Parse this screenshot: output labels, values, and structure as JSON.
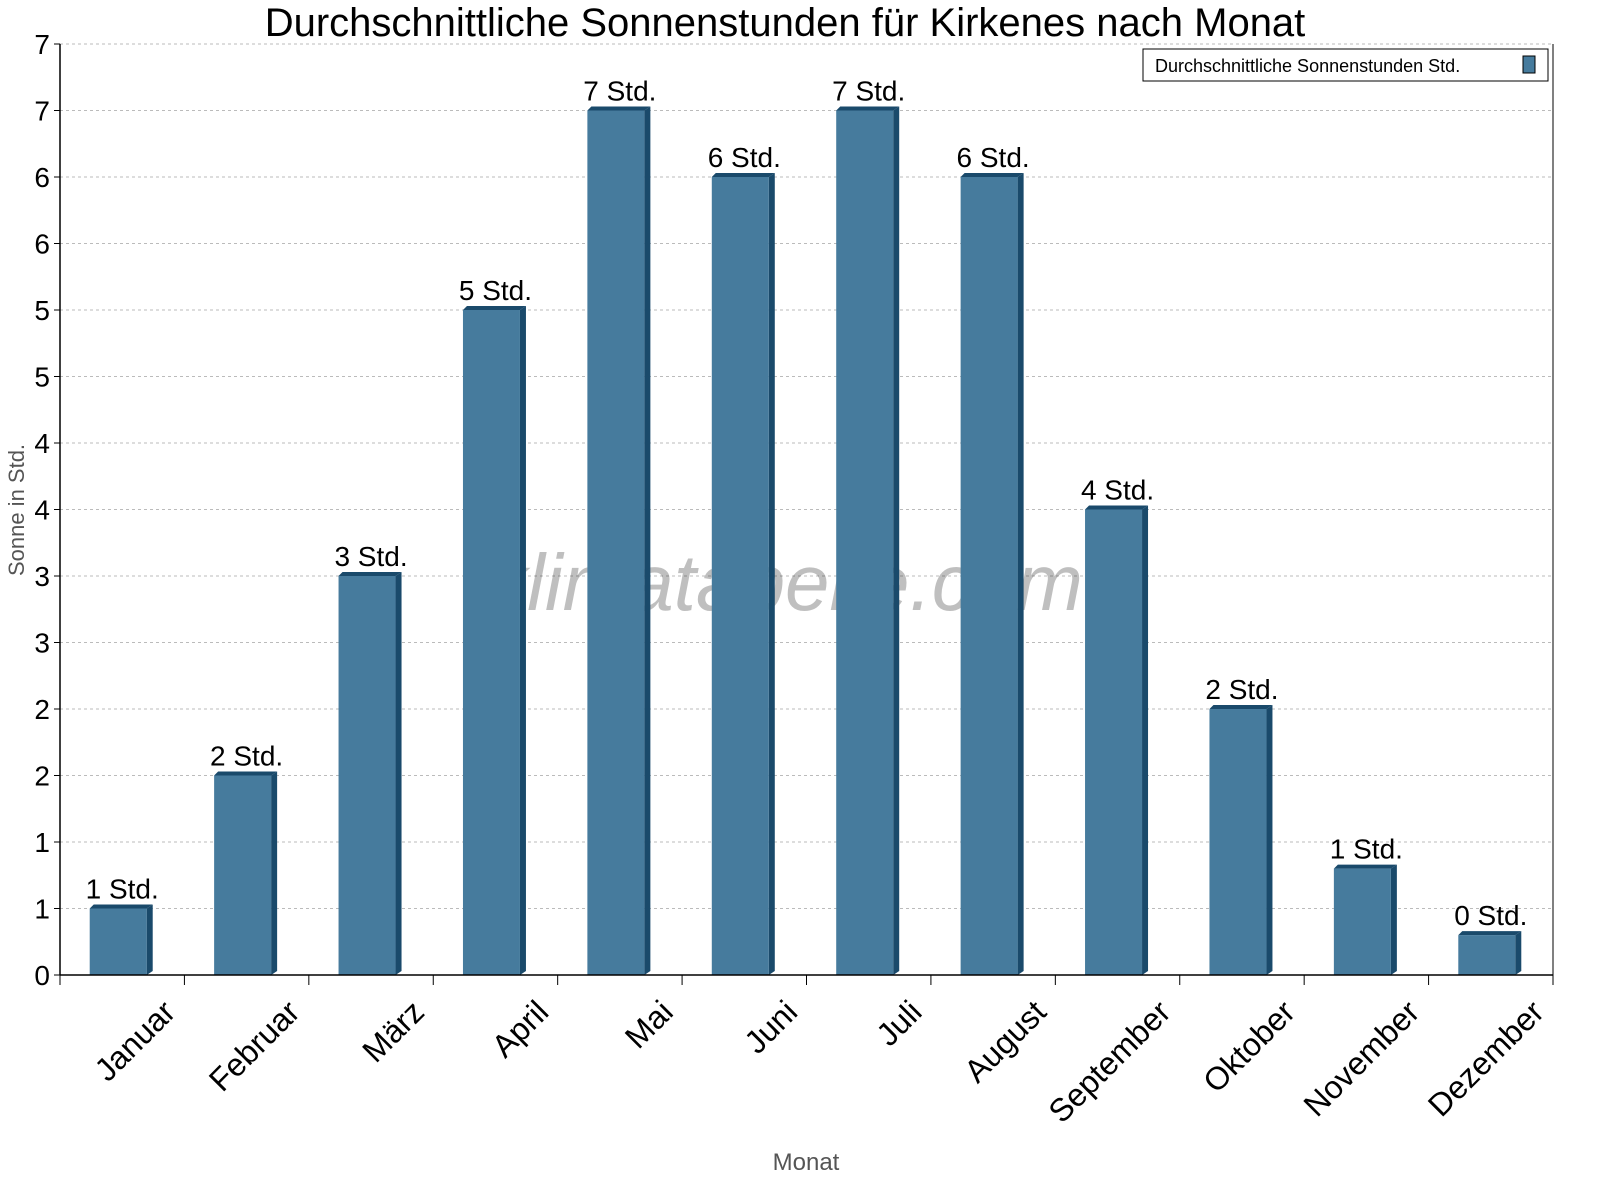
{
  "chart_data": {
    "type": "bar",
    "title": "Durchschnittliche Sonnenstunden für Kirkenes nach Monat",
    "xlabel": "Monat",
    "ylabel": "Sonne in Std.",
    "categories": [
      "Januar",
      "Februar",
      "März",
      "April",
      "Mai",
      "Juni",
      "Juli",
      "August",
      "September",
      "Oktober",
      "November",
      "Dezember"
    ],
    "series": [
      {
        "name": "Durchschnittliche Sonnenstunden Std.",
        "values": [
          0.5,
          1.5,
          3.0,
          5.0,
          6.5,
          6.0,
          6.5,
          6.0,
          3.5,
          2.0,
          0.8,
          0.3
        ],
        "data_labels": [
          "1 Std.",
          "2 Std.",
          "3 Std.",
          "5 Std.",
          "7 Std.",
          "6 Std.",
          "7 Std.",
          "6 Std.",
          "4 Std.",
          "2 Std.",
          "1 Std.",
          "0 Std."
        ]
      }
    ],
    "ylim": [
      0,
      7
    ],
    "yticks": [
      0,
      0.5,
      1,
      1.5,
      2,
      2.5,
      3,
      3.5,
      4,
      4.5,
      5,
      5.5,
      6,
      6.5,
      7
    ],
    "ytick_labels": [
      "0",
      "1",
      "1",
      "2",
      "2",
      "3",
      "3",
      "4",
      "4",
      "5",
      "5",
      "6",
      "6",
      "7",
      "7"
    ],
    "grid": true,
    "legend_position": "top-right",
    "colors": {
      "bar": "#467b9d",
      "bar_side": "#1a4a6b"
    },
    "watermark": "klimatabelle.com"
  }
}
